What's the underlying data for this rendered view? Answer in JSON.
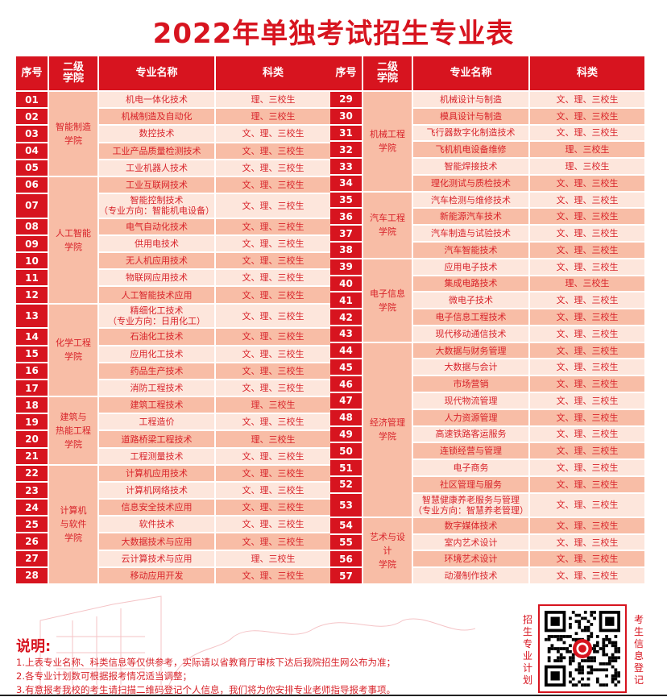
{
  "title": "2022年单独考试招生专业表",
  "headers": {
    "seq": "序号",
    "college": "二级\n学院",
    "major": "专业名称",
    "category": "科类"
  },
  "colors": {
    "primary_red": "#d7141f",
    "row_light": "#fde6dc",
    "row_dark": "#f8bda6"
  },
  "tables": [
    {
      "groups": [
        {
          "college": "智能制造学院",
          "majors": [
            {
              "seq": "01",
              "name": "机电一体化技术",
              "cat": "理、三校生"
            },
            {
              "seq": "02",
              "name": "机械制造及自动化",
              "cat": "理、三校生"
            },
            {
              "seq": "03",
              "name": "数控技术",
              "cat": "文、理、三校生"
            },
            {
              "seq": "04",
              "name": "工业产品质量检测技术",
              "cat": "文、理、三校生"
            },
            {
              "seq": "05",
              "name": "工业机器人技术",
              "cat": "文、理、三校生"
            }
          ]
        },
        {
          "college": "人工智能学院",
          "majors": [
            {
              "seq": "06",
              "name": "工业互联网技术",
              "cat": "文、理、三校生"
            },
            {
              "seq": "07",
              "name": "智能控制技术",
              "sub": "（专业方向：智能机电设备）",
              "cat": "文、理、三校生"
            },
            {
              "seq": "08",
              "name": "电气自动化技术",
              "cat": "文、理、三校生"
            },
            {
              "seq": "09",
              "name": "供用电技术",
              "cat": "文、理、三校生"
            },
            {
              "seq": "10",
              "name": "无人机应用技术",
              "cat": "文、理、三校生"
            },
            {
              "seq": "11",
              "name": "物联网应用技术",
              "cat": "文、理、三校生"
            },
            {
              "seq": "12",
              "name": "人工智能技术应用",
              "cat": "文、理、三校生"
            }
          ]
        },
        {
          "college": "化学工程学院",
          "majors": [
            {
              "seq": "13",
              "name": "精细化工技术",
              "sub": "（专业方向：日用化工）",
              "cat": "文、理、三校生"
            },
            {
              "seq": "14",
              "name": "石油化工技术",
              "cat": "文、理、三校生"
            },
            {
              "seq": "15",
              "name": "应用化工技术",
              "cat": "文、理、三校生"
            },
            {
              "seq": "16",
              "name": "药品生产技术",
              "cat": "文、理、三校生"
            },
            {
              "seq": "17",
              "name": "消防工程技术",
              "cat": "文、理、三校生"
            }
          ]
        },
        {
          "college": "建筑与热能工程学院",
          "majors": [
            {
              "seq": "18",
              "name": "建筑工程技术",
              "cat": "理、三校生"
            },
            {
              "seq": "19",
              "name": "工程造价",
              "cat": "文、理、三校生"
            },
            {
              "seq": "20",
              "name": "道路桥梁工程技术",
              "cat": "理、三校生"
            },
            {
              "seq": "21",
              "name": "工程测量技术",
              "cat": "文、理、三校生"
            }
          ]
        },
        {
          "college": "计算机与软件学院",
          "majors": [
            {
              "seq": "22",
              "name": "计算机应用技术",
              "cat": "文、理、三校生"
            },
            {
              "seq": "23",
              "name": "计算机网络技术",
              "cat": "文、理、三校生"
            },
            {
              "seq": "24",
              "name": "信息安全技术应用",
              "cat": "文、理、三校生"
            },
            {
              "seq": "25",
              "name": "软件技术",
              "cat": "文、理、三校生"
            },
            {
              "seq": "26",
              "name": "大数据技术与应用",
              "cat": "文、理、三校生"
            },
            {
              "seq": "27",
              "name": "云计算技术与应用",
              "cat": "理、三校生"
            },
            {
              "seq": "28",
              "name": "移动应用开发",
              "cat": "文、理、三校生"
            }
          ]
        }
      ]
    },
    {
      "groups": [
        {
          "college": "机械工程学院",
          "majors": [
            {
              "seq": "29",
              "name": "机械设计与制造",
              "cat": "文、理、三校生"
            },
            {
              "seq": "30",
              "name": "模具设计与制造",
              "cat": "文、理、三校生"
            },
            {
              "seq": "31",
              "name": "飞行器数字化制造技术",
              "cat": "文、理、三校生"
            },
            {
              "seq": "32",
              "name": "飞机机电设备维修",
              "cat": "理、三校生"
            },
            {
              "seq": "33",
              "name": "智能焊接技术",
              "cat": "理、三校生"
            },
            {
              "seq": "34",
              "name": "理化测试与质检技术",
              "cat": "文、理、三校生"
            }
          ]
        },
        {
          "college": "汽车工程学院",
          "majors": [
            {
              "seq": "35",
              "name": "汽车检测与维修技术",
              "cat": "文、理、三校生"
            },
            {
              "seq": "36",
              "name": "新能源汽车技术",
              "cat": "文、理、三校生"
            },
            {
              "seq": "37",
              "name": "汽车制造与试验技术",
              "cat": "文、理、三校生"
            },
            {
              "seq": "38",
              "name": "汽车智能技术",
              "cat": "文、理、三校生"
            }
          ]
        },
        {
          "college": "电子信息学院",
          "majors": [
            {
              "seq": "39",
              "name": "应用电子技术",
              "cat": "文、理、三校生"
            },
            {
              "seq": "40",
              "name": "集成电路技术",
              "cat": "理、三校生"
            },
            {
              "seq": "41",
              "name": "微电子技术",
              "cat": "文、理、三校生"
            },
            {
              "seq": "42",
              "name": "电子信息工程技术",
              "cat": "文、理、三校生"
            },
            {
              "seq": "43",
              "name": "现代移动通信技术",
              "cat": "文、理、三校生"
            }
          ]
        },
        {
          "college": "经济管理学院",
          "majors": [
            {
              "seq": "44",
              "name": "大数据与财务管理",
              "cat": "文、理、三校生"
            },
            {
              "seq": "45",
              "name": "大数据与会计",
              "cat": "文、理、三校生"
            },
            {
              "seq": "46",
              "name": "市场营销",
              "cat": "文、理、三校生"
            },
            {
              "seq": "47",
              "name": "现代物流管理",
              "cat": "文、理、三校生"
            },
            {
              "seq": "48",
              "name": "人力资源管理",
              "cat": "文、理、三校生"
            },
            {
              "seq": "49",
              "name": "高速铁路客运服务",
              "cat": "文、理、三校生"
            },
            {
              "seq": "50",
              "name": "连锁经营与管理",
              "cat": "文、理、三校生"
            },
            {
              "seq": "51",
              "name": "电子商务",
              "cat": "文、理、三校生"
            },
            {
              "seq": "52",
              "name": "社区管理与服务",
              "cat": "文、理、三校生"
            },
            {
              "seq": "53",
              "name": "智慧健康养老服务与管理",
              "sub": "（专业方向：智慧养老管理）",
              "cat": "文、理、三校生"
            }
          ]
        },
        {
          "college": "艺术与设计学院",
          "majors": [
            {
              "seq": "54",
              "name": "数字媒体技术",
              "cat": "文、理、三校生"
            },
            {
              "seq": "55",
              "name": "室内艺术设计",
              "cat": "文、理、三校生"
            },
            {
              "seq": "56",
              "name": "环境艺术设计",
              "cat": "文、理、三校生"
            },
            {
              "seq": "57",
              "name": "动漫制作技术",
              "cat": "文、理、三校生"
            }
          ]
        }
      ]
    }
  ],
  "notes": {
    "title": "说明:",
    "items": [
      "1.上表专业名称、科类信息等仅供参考，实际请以省教育厅审核下达后我院招生网公布为准；",
      "2.各专业计划数可根据报考情况适当调整；",
      "3.有意报考我校的考生请扫描二维码登记个人信息，我们将为你安排专业老师指导报考事项。"
    ]
  },
  "qr": {
    "left_label": "招生专业计划",
    "right_label": "考生信息登记",
    "icon": "qr-code-icon"
  }
}
